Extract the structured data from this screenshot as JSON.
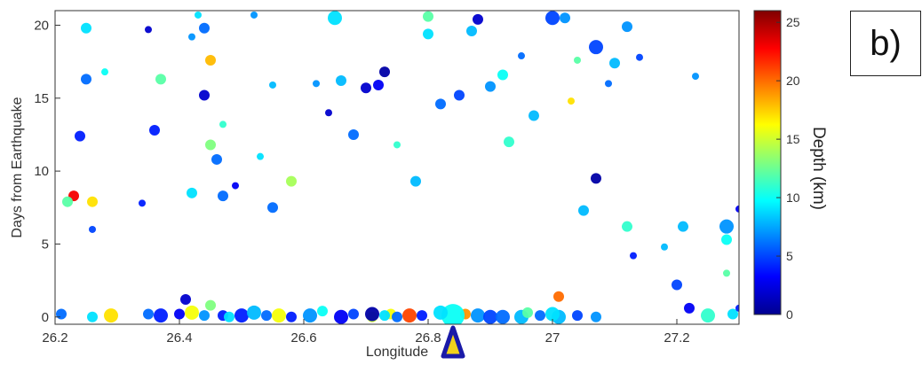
{
  "panel_label": "b)",
  "chart_data": {
    "type": "scatter",
    "title": "",
    "xlabel": "Longitude",
    "ylabel": "Days from Earthquake",
    "xlim": [
      26.2,
      27.3
    ],
    "ylim": [
      -0.5,
      21
    ],
    "xticks": [
      "26.2",
      "26.4",
      "26.6",
      "26.8",
      "27",
      "27.2"
    ],
    "yticks": [
      "0",
      "5",
      "10",
      "15",
      "20"
    ],
    "colorbar": {
      "label": "Depth (km)",
      "range": [
        0,
        26
      ],
      "ticks": [
        "0",
        "5",
        "10",
        "15",
        "20",
        "25"
      ],
      "colormap": "jet"
    },
    "marker": {
      "name": "epicenter-triangle",
      "x": 26.84,
      "edge_color": "#1a1aa8",
      "face_color": "#f2d21b"
    },
    "grid": false,
    "series": [
      {
        "columns": [
          "longitude",
          "days",
          "depth_km",
          "size_rank"
        ],
        "points": [
          [
            26.21,
            0.2,
            6,
            2
          ],
          [
            26.23,
            8.3,
            23,
            2
          ],
          [
            26.26,
            7.9,
            17,
            2
          ],
          [
            26.22,
            7.9,
            12,
            2
          ],
          [
            26.25,
            16.3,
            6,
            2
          ],
          [
            26.24,
            12.4,
            4,
            2
          ],
          [
            26.25,
            19.8,
            9,
            2
          ],
          [
            26.28,
            16.8,
            10,
            1
          ],
          [
            26.26,
            6.0,
            5,
            1
          ],
          [
            26.29,
            0.1,
            17,
            3
          ],
          [
            26.26,
            0.0,
            9,
            2
          ],
          [
            26.35,
            19.7,
            2,
            1
          ],
          [
            26.34,
            7.8,
            4,
            1
          ],
          [
            26.37,
            16.3,
            12,
            2
          ],
          [
            26.36,
            12.8,
            4,
            2
          ],
          [
            26.43,
            20.7,
            9,
            1
          ],
          [
            26.44,
            15.2,
            2,
            2
          ],
          [
            26.45,
            17.6,
            18,
            2
          ],
          [
            26.44,
            19.8,
            6,
            2
          ],
          [
            26.42,
            19.2,
            7,
            1
          ],
          [
            26.47,
            13.2,
            11,
            1
          ],
          [
            26.46,
            10.8,
            6,
            2
          ],
          [
            26.42,
            8.5,
            9,
            2
          ],
          [
            26.45,
            11.8,
            13,
            2
          ],
          [
            26.47,
            8.3,
            6,
            2
          ],
          [
            26.49,
            9.0,
            3,
            1
          ],
          [
            26.52,
            20.7,
            7,
            1
          ],
          [
            26.55,
            15.9,
            8,
            1
          ],
          [
            26.53,
            11.0,
            9,
            1
          ],
          [
            26.58,
            9.3,
            14,
            2
          ],
          [
            26.55,
            7.5,
            6,
            2
          ],
          [
            26.62,
            16.0,
            7,
            1
          ],
          [
            26.64,
            14.0,
            2,
            1
          ],
          [
            26.65,
            20.5,
            9,
            3
          ],
          [
            26.66,
            16.2,
            8,
            2
          ],
          [
            26.68,
            12.5,
            6,
            2
          ],
          [
            26.7,
            15.7,
            2,
            2
          ],
          [
            26.72,
            15.9,
            3,
            2
          ],
          [
            26.75,
            11.8,
            11,
            1
          ],
          [
            26.73,
            16.8,
            1,
            2
          ],
          [
            26.78,
            9.3,
            8,
            2
          ],
          [
            26.8,
            19.4,
            9,
            2
          ],
          [
            26.8,
            20.6,
            12,
            2
          ],
          [
            26.82,
            14.6,
            6,
            2
          ],
          [
            26.85,
            15.2,
            5,
            2
          ],
          [
            26.87,
            19.6,
            8,
            2
          ],
          [
            26.88,
            20.4,
            2,
            2
          ],
          [
            26.9,
            15.8,
            7,
            2
          ],
          [
            26.92,
            16.6,
            10,
            2
          ],
          [
            26.93,
            12.0,
            11,
            2
          ],
          [
            26.95,
            17.9,
            6,
            1
          ],
          [
            26.97,
            13.8,
            8,
            2
          ],
          [
            27.0,
            20.5,
            5,
            3
          ],
          [
            27.02,
            20.5,
            7,
            2
          ],
          [
            27.03,
            14.8,
            17,
            1
          ],
          [
            27.04,
            17.6,
            12,
            1
          ],
          [
            27.07,
            18.5,
            5,
            3
          ],
          [
            27.12,
            19.9,
            7,
            2
          ],
          [
            27.1,
            17.4,
            8,
            2
          ],
          [
            27.09,
            16.0,
            6,
            1
          ],
          [
            27.14,
            17.8,
            5,
            1
          ],
          [
            27.23,
            16.5,
            7,
            1
          ],
          [
            27.07,
            9.5,
            1,
            2
          ],
          [
            27.05,
            7.3,
            8,
            2
          ],
          [
            27.12,
            6.2,
            11,
            2
          ],
          [
            27.21,
            6.2,
            8,
            2
          ],
          [
            27.18,
            4.8,
            8,
            1
          ],
          [
            27.13,
            4.2,
            4,
            1
          ],
          [
            27.2,
            2.2,
            5,
            2
          ],
          [
            27.28,
            6.2,
            7,
            3
          ],
          [
            27.28,
            5.3,
            10,
            2
          ],
          [
            27.28,
            3.0,
            12,
            1
          ],
          [
            27.29,
            0.2,
            9,
            2
          ],
          [
            27.3,
            7.4,
            3,
            1
          ],
          [
            27.3,
            0.6,
            4,
            1
          ],
          [
            27.22,
            0.6,
            3,
            2
          ],
          [
            27.25,
            0.1,
            11,
            3
          ],
          [
            27.01,
            1.4,
            20,
            2
          ],
          [
            26.86,
            0.2,
            19,
            2
          ],
          [
            26.77,
            0.1,
            21,
            3
          ],
          [
            26.71,
            0.0,
            15,
            2
          ],
          [
            26.74,
            0.2,
            16,
            2
          ],
          [
            26.56,
            0.1,
            16,
            3
          ],
          [
            26.66,
            0.0,
            3,
            3
          ],
          [
            26.71,
            0.2,
            1,
            3
          ],
          [
            26.61,
            0.1,
            7,
            3
          ],
          [
            26.63,
            0.4,
            10,
            2
          ],
          [
            26.42,
            0.3,
            16,
            3
          ],
          [
            26.45,
            0.8,
            13,
            2
          ],
          [
            26.5,
            0.1,
            4,
            3
          ],
          [
            26.52,
            0.3,
            8,
            3
          ],
          [
            26.47,
            0.1,
            4,
            2
          ],
          [
            26.35,
            0.2,
            6,
            2
          ],
          [
            26.37,
            0.1,
            4,
            3
          ],
          [
            26.4,
            0.2,
            3,
            2
          ],
          [
            26.41,
            1.2,
            2,
            2
          ],
          [
            26.84,
            0.1,
            10,
            5
          ],
          [
            26.82,
            0.3,
            9,
            3
          ],
          [
            26.88,
            0.1,
            7,
            3
          ],
          [
            26.9,
            0.0,
            5,
            3
          ],
          [
            26.92,
            0.0,
            6,
            3
          ],
          [
            26.95,
            0.0,
            8,
            3
          ],
          [
            26.98,
            0.1,
            6,
            2
          ],
          [
            27.01,
            0.0,
            8,
            3
          ],
          [
            27.04,
            0.1,
            5,
            2
          ],
          [
            27.07,
            0.0,
            7,
            2
          ],
          [
            27.0,
            0.2,
            9,
            3
          ],
          [
            26.96,
            0.3,
            12,
            2
          ],
          [
            26.79,
            0.1,
            4,
            2
          ],
          [
            26.75,
            0.0,
            6,
            2
          ],
          [
            26.73,
            0.1,
            9,
            2
          ],
          [
            26.68,
            0.2,
            5,
            2
          ],
          [
            26.58,
            0.0,
            4,
            2
          ],
          [
            26.54,
            0.1,
            6,
            2
          ],
          [
            26.48,
            0.0,
            9,
            2
          ],
          [
            26.44,
            0.1,
            7,
            2
          ]
        ]
      }
    ]
  }
}
